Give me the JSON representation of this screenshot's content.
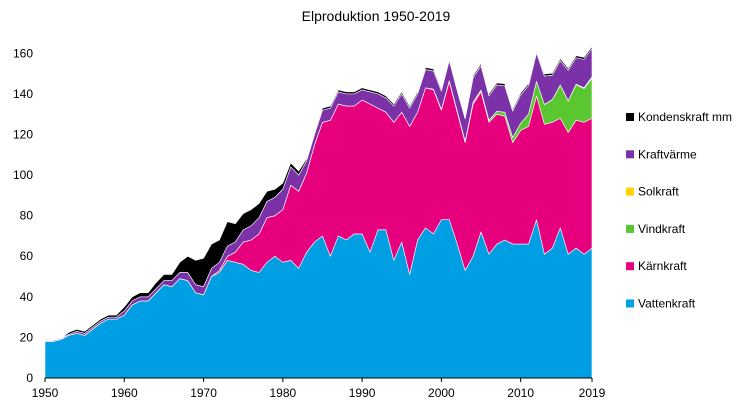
{
  "chart_data": {
    "type": "area",
    "stacked": true,
    "title": "Elproduktion 1950-2019",
    "xlabel": "",
    "ylabel": "",
    "ylim": [
      0,
      170
    ],
    "yticks": [
      0,
      20,
      40,
      60,
      80,
      100,
      120,
      140,
      160
    ],
    "xtick_labels": [
      "1950",
      "1960",
      "1970",
      "1980",
      "1990",
      "2000",
      "2010",
      "2019"
    ],
    "xtick_years": [
      1950,
      1960,
      1970,
      1980,
      1990,
      2000,
      2010,
      2019
    ],
    "legend_position": "right",
    "x": [
      1950,
      1951,
      1952,
      1953,
      1954,
      1955,
      1956,
      1957,
      1958,
      1959,
      1960,
      1961,
      1962,
      1963,
      1964,
      1965,
      1966,
      1967,
      1968,
      1969,
      1970,
      1971,
      1972,
      1973,
      1974,
      1975,
      1976,
      1977,
      1978,
      1979,
      1980,
      1981,
      1982,
      1983,
      1984,
      1985,
      1986,
      1987,
      1988,
      1989,
      1990,
      1991,
      1992,
      1993,
      1994,
      1995,
      1996,
      1997,
      1998,
      1999,
      2000,
      2001,
      2002,
      2003,
      2004,
      2005,
      2006,
      2007,
      2008,
      2009,
      2010,
      2011,
      2012,
      2013,
      2014,
      2015,
      2016,
      2017,
      2018,
      2019
    ],
    "series": [
      {
        "name": "Vattenkraft",
        "color": "#009fe3",
        "values": [
          18,
          18,
          19,
          21,
          22,
          21,
          24,
          27,
          29,
          29,
          31,
          36,
          38,
          38,
          42,
          46,
          45,
          49,
          48,
          42,
          41,
          50,
          52,
          58,
          57,
          56,
          53,
          52,
          57,
          60,
          57,
          58,
          54,
          62,
          67,
          70,
          60,
          70,
          68,
          71,
          71,
          62,
          73,
          73,
          58,
          67,
          51,
          68,
          74,
          71,
          78,
          78,
          66,
          53,
          60,
          72,
          61,
          66,
          68,
          66,
          66,
          66,
          78,
          61,
          64,
          74,
          61,
          64,
          61,
          64
        ]
      },
      {
        "name": "Kärnkraft",
        "color": "#e6007e",
        "values": [
          0,
          0,
          0,
          0,
          0,
          0,
          0,
          0,
          0,
          0,
          0,
          0,
          0,
          0,
          0,
          0,
          0,
          0,
          0,
          0,
          0,
          0,
          1,
          2,
          5,
          11,
          15,
          19,
          22,
          20,
          26,
          37,
          38,
          39,
          48,
          56,
          67,
          65,
          66,
          63,
          66,
          73,
          60,
          58,
          68,
          64,
          73,
          63,
          69,
          71,
          54,
          68,
          65,
          63,
          75,
          69,
          65,
          64,
          61,
          50,
          56,
          58,
          61,
          64,
          62,
          54,
          60,
          63,
          65,
          64
        ]
      },
      {
        "name": "Vindkraft",
        "color": "#5ac731",
        "values": [
          0,
          0,
          0,
          0,
          0,
          0,
          0,
          0,
          0,
          0,
          0,
          0,
          0,
          0,
          0,
          0,
          0,
          0,
          0,
          0,
          0,
          0,
          0,
          0,
          0,
          0,
          0,
          0,
          0,
          0,
          0,
          0,
          0,
          0,
          0,
          0,
          0,
          0,
          0,
          0,
          0,
          0,
          0,
          0,
          0,
          0,
          0,
          0,
          0,
          0.3,
          0.4,
          0.5,
          0.6,
          0.7,
          0.9,
          0.9,
          1,
          1.4,
          2,
          2.5,
          3.5,
          6.1,
          7.2,
          9.8,
          11.2,
          16.3,
          15.5,
          17.6,
          16.6,
          19.8
        ]
      },
      {
        "name": "Solkraft",
        "color": "#ffd200",
        "values": [
          0,
          0,
          0,
          0,
          0,
          0,
          0,
          0,
          0,
          0,
          0,
          0,
          0,
          0,
          0,
          0,
          0,
          0,
          0,
          0,
          0,
          0,
          0,
          0,
          0,
          0,
          0,
          0,
          0,
          0,
          0,
          0,
          0,
          0,
          0,
          0,
          0,
          0,
          0,
          0,
          0,
          0,
          0,
          0,
          0,
          0,
          0,
          0,
          0,
          0,
          0,
          0,
          0,
          0,
          0,
          0,
          0,
          0,
          0,
          0,
          0,
          0,
          0,
          0,
          0,
          0.1,
          0.1,
          0.2,
          0.4,
          0.6
        ]
      },
      {
        "name": "Kraftvärme",
        "color": "#7b32a8",
        "values": [
          0.5,
          0.5,
          0.5,
          0.5,
          1,
          1,
          1,
          1,
          1,
          1,
          2,
          2,
          2,
          2,
          2,
          2,
          3,
          3,
          4,
          4,
          4,
          4,
          4,
          5,
          5,
          6,
          7,
          8,
          8,
          9,
          10,
          9,
          8,
          6,
          5,
          6,
          6,
          6,
          6,
          6,
          5,
          6,
          7,
          7,
          8,
          9,
          9,
          9,
          9,
          9,
          9,
          10,
          10,
          11,
          12,
          12,
          12,
          13,
          13,
          13,
          14,
          14,
          14,
          14,
          12,
          12,
          15,
          13,
          14,
          14
        ]
      },
      {
        "name": "Kondenskraft mm",
        "color": "#000000",
        "values": [
          0,
          0,
          0,
          1,
          1,
          1,
          1,
          1,
          1,
          1,
          2,
          2,
          2,
          2,
          3,
          3,
          3,
          5,
          8,
          12,
          14,
          12,
          11,
          12,
          9,
          8,
          8,
          7,
          5,
          4,
          3,
          2,
          2,
          1,
          1,
          1,
          1,
          1,
          1,
          1,
          1,
          1,
          1,
          1,
          1,
          1,
          1,
          1,
          1,
          1,
          1,
          1,
          1,
          1,
          1,
          1,
          1,
          1,
          1,
          1,
          1,
          1,
          1,
          1,
          1,
          1,
          1,
          1,
          1,
          1
        ]
      }
    ],
    "legend_order": [
      "Kondenskraft mm",
      "Kraftvärme",
      "Solkraft",
      "Vindkraft",
      "Kärnkraft",
      "Vattenkraft"
    ]
  }
}
